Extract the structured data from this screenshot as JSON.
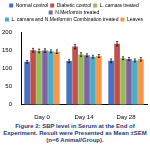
{
  "chart_data": {
    "type": "bar",
    "title": "Figure 2: SBP level in Serum at the End of Experiment. Result were Presented as Mean ±SEM (n=6 Animal/Group).",
    "categories": [
      "Day 0",
      "Day 14",
      "Day 28"
    ],
    "series": [
      {
        "name": "Normal control",
        "color": "#4472c4",
        "values": [
          118,
          120,
          121
        ],
        "errors": [
          4,
          4,
          5
        ]
      },
      {
        "name": "Diabetic control",
        "color": "#c0504d",
        "values": [
          150,
          160,
          168
        ],
        "errors": [
          5,
          6,
          6
        ]
      },
      {
        "name": "L. camara treated",
        "color": "#9bbb59",
        "values": [
          148,
          138,
          128
        ],
        "errors": [
          5,
          5,
          4
        ]
      },
      {
        "name": "N.Metformin treated",
        "color": "#8064a2",
        "values": [
          149,
          136,
          126
        ],
        "errors": [
          5,
          4,
          4
        ]
      },
      {
        "name": "L. camara and N.Metformin Combination treated",
        "color": "#4bacc6",
        "values": [
          147,
          132,
          122
        ],
        "errors": [
          4,
          4,
          4
        ]
      },
      {
        "name": "Leaves",
        "color": "#f79646",
        "values": [
          146,
          134,
          125
        ],
        "errors": [
          5,
          4,
          5
        ]
      }
    ],
    "ylim": [
      0,
      200
    ],
    "yticks": [
      0,
      50,
      100,
      150,
      200
    ],
    "grid": false,
    "legend": "top"
  }
}
